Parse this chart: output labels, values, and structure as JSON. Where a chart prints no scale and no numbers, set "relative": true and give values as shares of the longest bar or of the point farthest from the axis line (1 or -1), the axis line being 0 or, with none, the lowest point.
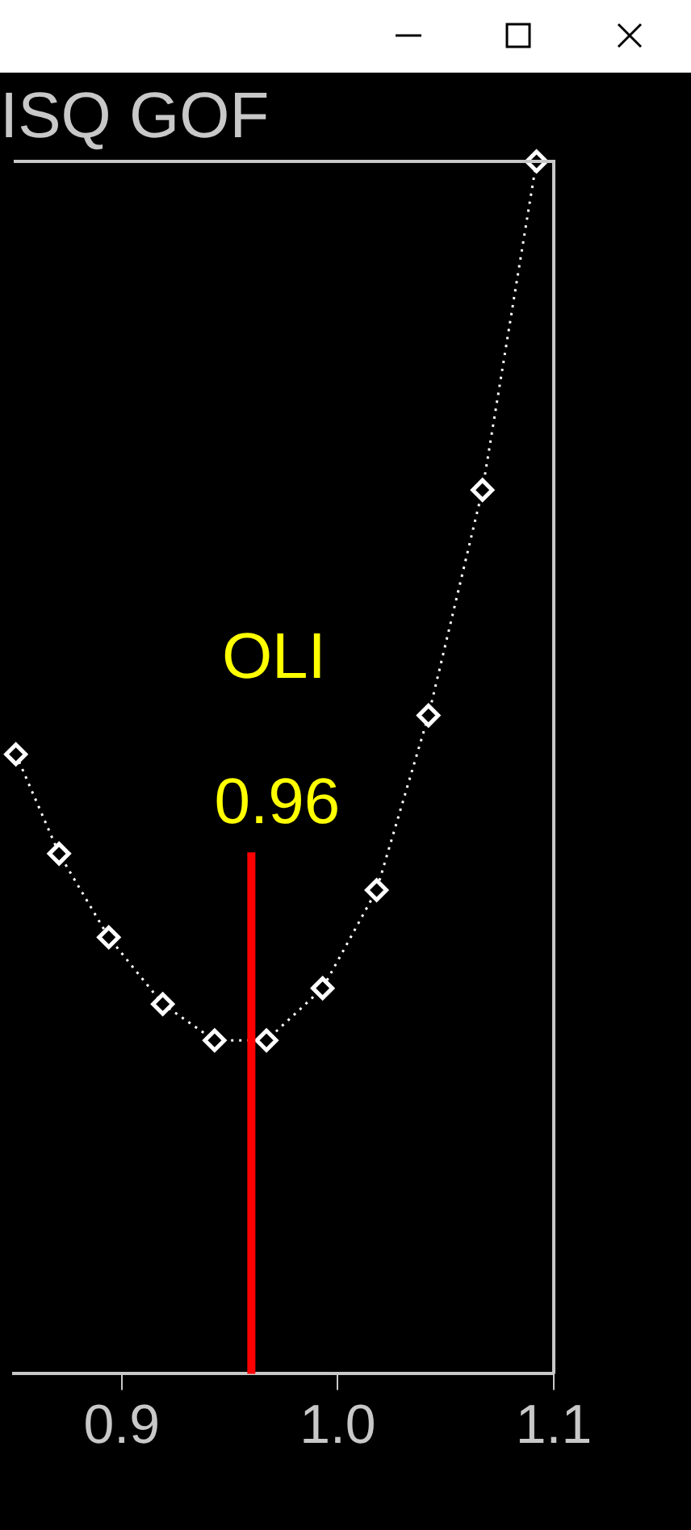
{
  "chart_data": {
    "type": "line",
    "title": "ISQ GOF",
    "relative": true,
    "x": [
      0.851,
      0.871,
      0.894,
      0.919,
      0.943,
      0.967,
      0.993,
      1.018,
      1.042,
      1.067,
      1.092
    ],
    "series": [
      {
        "color": "#ffffff",
        "values": [
          0.511,
          0.429,
          0.36,
          0.305,
          0.275,
          0.275,
          0.318,
          0.399,
          0.543,
          0.729,
          1
        ]
      }
    ],
    "xlim": [
      0.85,
      1.1
    ],
    "xticks": [
      0.9,
      {
        "value": 1,
        "label": "1.0"
      },
      1.1
    ],
    "marker": "diamond",
    "line_style": "dotted",
    "grid": false,
    "legend": false,
    "ref_lines": [
      {
        "axis": "x",
        "value": 0.96,
        "label": "OLI",
        "color": "#ff0000"
      }
    ],
    "annotations": [
      {
        "text": "0.96",
        "x": 0.96,
        "y": 0.43
      }
    ]
  }
}
